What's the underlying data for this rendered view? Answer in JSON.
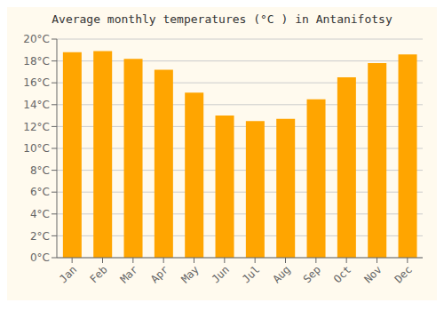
{
  "chart_data": {
    "type": "bar",
    "title": "Average monthly temperatures (°C ) in Antanifotsy",
    "categories": [
      "Jan",
      "Feb",
      "Mar",
      "Apr",
      "May",
      "Jun",
      "Jul",
      "Aug",
      "Sep",
      "Oct",
      "Nov",
      "Dec"
    ],
    "values": [
      18.8,
      18.9,
      18.2,
      17.2,
      15.1,
      13.0,
      12.5,
      12.7,
      14.5,
      16.5,
      17.8,
      18.6
    ],
    "color": "#FFA500",
    "ylim": [
      0,
      20
    ],
    "yticks": [
      {
        "value": 0,
        "label": "0°C"
      },
      {
        "value": 2,
        "label": "2°C"
      },
      {
        "value": 4,
        "label": "4°C"
      },
      {
        "value": 6,
        "label": "6°C"
      },
      {
        "value": 8,
        "label": "8°C"
      },
      {
        "value": 10,
        "label": "10°C"
      },
      {
        "value": 12,
        "label": "12°C"
      },
      {
        "value": 14,
        "label": "14°C"
      },
      {
        "value": 16,
        "label": "16°C"
      },
      {
        "value": 18,
        "label": "18°C"
      },
      {
        "value": 20,
        "label": "20°C"
      }
    ],
    "grid": true
  }
}
